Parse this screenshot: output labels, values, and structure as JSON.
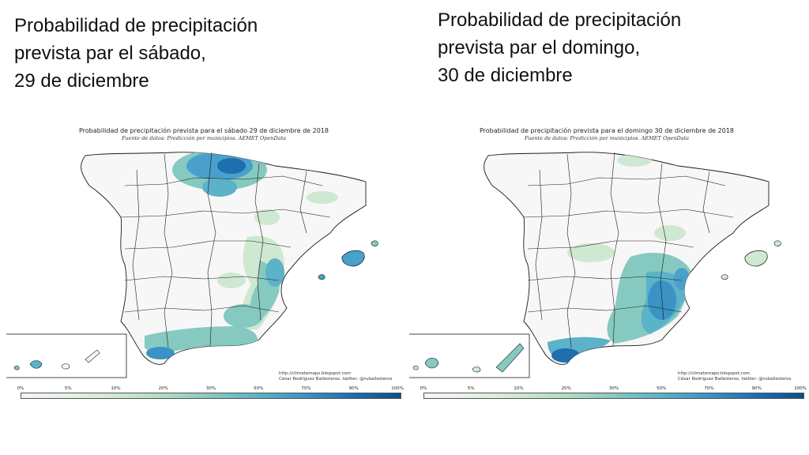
{
  "headings": {
    "left": [
      "Probabilidad de precipitación",
      "prevista par el sábado,",
      "29 de diciembre"
    ],
    "right": [
      "Probabilidad de precipitación",
      "prevista par el domingo,",
      "30 de diciembre"
    ]
  },
  "maps": [
    {
      "title": "Probabilidad de precipitación prevista para el sábado 29 de diciembre de 2018",
      "source": "Fuente de datos: Predicción por municipios. AEMET OpenData",
      "credit_url": "http://climatemaps.blogspot.com",
      "credit_author": "César Rodríguez Ballesteros. twitter: @ruballesteros"
    },
    {
      "title": "Probabilidad de precipitación prevista para el domingo 30 de diciembre de 2018",
      "source": "Fuente de datos: Predicción por municipios. AEMET OpenData",
      "credit_url": "http://climatemaps.blogspot.com",
      "credit_author": "César Rodríguez Ballesteros. twitter: @ruballesteros"
    }
  ],
  "scale": {
    "ticks": [
      "0%",
      "5%",
      "10%",
      "20%",
      "30%",
      "50%",
      "70%",
      "90%",
      "100%"
    ],
    "colors": [
      "#f4f4f4",
      "#e6f2e6",
      "#cfe8d2",
      "#b0dcc4",
      "#86c9c0",
      "#5bb2c9",
      "#3a93c4",
      "#1b6fae",
      "#0b4f8a"
    ]
  },
  "colors": {
    "land": "#f7f7f7",
    "border": "#1a1a1a",
    "light_green": "#cfe8d2",
    "mid_teal": "#7cc4c0",
    "blue": "#4aa0cc",
    "dark_blue": "#1d6fae"
  }
}
